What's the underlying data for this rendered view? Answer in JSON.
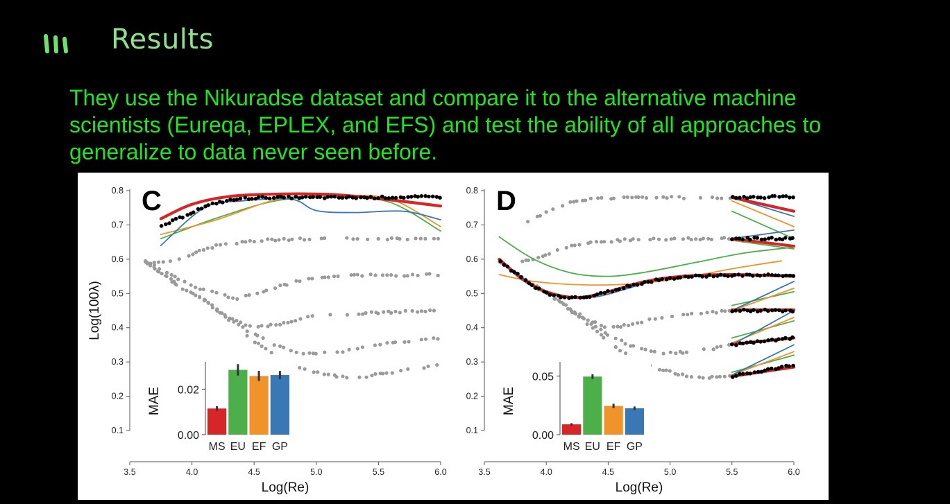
{
  "slide": {
    "title": "Results",
    "body": "They use the Nikuradse dataset and compare it to the alternative machine scientists (Eureqa, EPLEX, and EFS) and test the ability of all approaches to generalize to data never seen before.",
    "title_color": "#8ee08e",
    "text_color": "#22e222",
    "logo_icon": "three-bars-logo-icon"
  },
  "chart_data": [
    {
      "panel": "C",
      "type": "scatter",
      "xlabel": "Log(Re)",
      "ylabel": "Log(100λ)",
      "xlim": [
        3.5,
        6.0
      ],
      "ylim": [
        0.1,
        0.8
      ],
      "xticks": [
        "3.5",
        "4.0",
        "4.5",
        "5.0",
        "5.5",
        "6.0"
      ],
      "yticks": [
        "0.1",
        "0.2",
        "0.3",
        "0.4",
        "0.5",
        "0.6",
        "0.7",
        "0.8"
      ],
      "gray_curves": [
        [
          [
            3.62,
            0.595
          ],
          [
            3.8,
            0.59
          ],
          [
            4.0,
            0.615
          ],
          [
            4.2,
            0.64
          ],
          [
            4.4,
            0.65
          ],
          [
            4.7,
            0.658
          ],
          [
            5.2,
            0.66
          ],
          [
            6.0,
            0.66
          ]
        ],
        [
          [
            3.62,
            0.595
          ],
          [
            3.9,
            0.54
          ],
          [
            4.1,
            0.51
          ],
          [
            4.35,
            0.485
          ],
          [
            4.6,
            0.51
          ],
          [
            4.9,
            0.54
          ],
          [
            5.2,
            0.552
          ],
          [
            6.0,
            0.555
          ]
        ],
        [
          [
            3.62,
            0.595
          ],
          [
            3.9,
            0.525
          ],
          [
            4.1,
            0.48
          ],
          [
            4.3,
            0.43
          ],
          [
            4.5,
            0.4
          ],
          [
            4.7,
            0.41
          ],
          [
            4.9,
            0.43
          ],
          [
            5.2,
            0.44
          ],
          [
            6.0,
            0.45
          ]
        ],
        [
          [
            3.62,
            0.595
          ],
          [
            3.9,
            0.52
          ],
          [
            4.1,
            0.48
          ],
          [
            4.3,
            0.425
          ],
          [
            4.5,
            0.38
          ],
          [
            4.7,
            0.345
          ],
          [
            4.9,
            0.325
          ],
          [
            5.2,
            0.33
          ],
          [
            5.6,
            0.355
          ],
          [
            6.0,
            0.37
          ]
        ],
        [
          [
            3.62,
            0.595
          ],
          [
            3.9,
            0.52
          ],
          [
            4.1,
            0.48
          ],
          [
            4.3,
            0.42
          ],
          [
            4.5,
            0.36
          ],
          [
            4.7,
            0.31
          ],
          [
            4.9,
            0.28
          ],
          [
            5.1,
            0.262
          ],
          [
            5.3,
            0.252
          ],
          [
            5.6,
            0.27
          ],
          [
            6.0,
            0.29
          ]
        ]
      ],
      "black_series": [
        [
          3.75,
          0.695
        ],
        [
          3.9,
          0.72
        ],
        [
          4.05,
          0.745
        ],
        [
          4.2,
          0.765
        ],
        [
          4.4,
          0.777
        ],
        [
          4.6,
          0.78
        ],
        [
          4.9,
          0.78
        ],
        [
          5.2,
          0.78
        ],
        [
          5.5,
          0.78
        ],
        [
          6.0,
          0.782
        ]
      ],
      "fit_lines": [
        {
          "name": "MS",
          "color": "#d62728",
          "points": [
            [
              3.75,
              0.718
            ],
            [
              4.0,
              0.76
            ],
            [
              4.3,
              0.783
            ],
            [
              4.7,
              0.79
            ],
            [
              5.1,
              0.789
            ],
            [
              5.5,
              0.777
            ],
            [
              6.0,
              0.755
            ]
          ]
        },
        {
          "name": "EU",
          "color": "#4daf4a",
          "points": [
            [
              3.75,
              0.66
            ],
            [
              4.2,
              0.72
            ],
            [
              4.7,
              0.772
            ],
            [
              5.2,
              0.78
            ],
            [
              5.6,
              0.765
            ],
            [
              6.0,
              0.682
            ]
          ]
        },
        {
          "name": "EF",
          "color": "#f0932b",
          "points": [
            [
              3.75,
              0.672
            ],
            [
              4.2,
              0.715
            ],
            [
              4.7,
              0.775
            ],
            [
              5.2,
              0.785
            ],
            [
              5.6,
              0.775
            ],
            [
              6.0,
              0.695
            ]
          ]
        },
        {
          "name": "GP",
          "color": "#3a78b5",
          "points": [
            [
              3.75,
              0.64
            ],
            [
              4.1,
              0.75
            ],
            [
              4.4,
              0.77
            ],
            [
              4.8,
              0.775
            ],
            [
              5.0,
              0.742
            ],
            [
              5.3,
              0.736
            ],
            [
              5.7,
              0.74
            ],
            [
              6.0,
              0.715
            ]
          ]
        }
      ],
      "inset": {
        "type": "bar",
        "ylabel": "MAE",
        "categories": [
          "MS",
          "EU",
          "EF",
          "GP"
        ],
        "values": [
          0.0115,
          0.0285,
          0.0258,
          0.0262
        ],
        "errors": [
          0.001,
          0.0025,
          0.0022,
          0.0018
        ],
        "colors": [
          "#d62728",
          "#4daf4a",
          "#f0932b",
          "#3a78b5"
        ],
        "ylim": [
          0,
          0.032
        ],
        "yticks": [
          {
            "value": 0,
            "label": "0.00"
          },
          {
            "value": 0.02,
            "label": "0.02"
          }
        ]
      }
    },
    {
      "panel": "D",
      "type": "scatter",
      "xlabel": "Log(Re)",
      "ylabel": "",
      "xlim": [
        3.5,
        6.0
      ],
      "ylim": [
        0.1,
        0.8
      ],
      "xticks": [
        "3.5",
        "4.0",
        "4.5",
        "5.0",
        "5.5",
        "6.0"
      ],
      "yticks": [
        "0.1",
        "0.2",
        "0.3",
        "0.4",
        "0.5",
        "0.6",
        "0.7",
        "0.8"
      ],
      "gray_curves": [
        [
          [
            3.75,
            0.695
          ],
          [
            3.9,
            0.72
          ],
          [
            4.05,
            0.745
          ],
          [
            4.2,
            0.765
          ],
          [
            4.4,
            0.777
          ],
          [
            4.6,
            0.78
          ],
          [
            4.9,
            0.78
          ],
          [
            5.5,
            0.78
          ]
        ],
        [
          [
            3.62,
            0.595
          ],
          [
            3.8,
            0.59
          ],
          [
            4.0,
            0.615
          ],
          [
            4.2,
            0.64
          ],
          [
            4.4,
            0.65
          ],
          [
            4.7,
            0.658
          ],
          [
            5.5,
            0.66
          ]
        ],
        [
          [
            3.62,
            0.595
          ],
          [
            3.9,
            0.525
          ],
          [
            4.1,
            0.48
          ],
          [
            4.3,
            0.43
          ],
          [
            4.5,
            0.4
          ],
          [
            4.7,
            0.41
          ],
          [
            4.9,
            0.43
          ],
          [
            5.2,
            0.44
          ],
          [
            5.5,
            0.45
          ]
        ],
        [
          [
            3.62,
            0.595
          ],
          [
            3.9,
            0.52
          ],
          [
            4.1,
            0.48
          ],
          [
            4.3,
            0.425
          ],
          [
            4.5,
            0.38
          ],
          [
            4.7,
            0.345
          ],
          [
            4.9,
            0.325
          ],
          [
            5.2,
            0.33
          ],
          [
            5.5,
            0.35
          ]
        ],
        [
          [
            3.62,
            0.595
          ],
          [
            3.9,
            0.52
          ],
          [
            4.1,
            0.48
          ],
          [
            4.3,
            0.42
          ],
          [
            4.5,
            0.36
          ],
          [
            4.7,
            0.31
          ],
          [
            4.9,
            0.28
          ],
          [
            5.1,
            0.262
          ],
          [
            5.3,
            0.255
          ],
          [
            5.5,
            0.258
          ]
        ]
      ],
      "black_train": [
        [
          3.62,
          0.595
        ],
        [
          3.75,
          0.56
        ],
        [
          3.9,
          0.52
        ],
        [
          4.05,
          0.495
        ],
        [
          4.2,
          0.488
        ],
        [
          4.35,
          0.49
        ],
        [
          4.5,
          0.505
        ],
        [
          4.7,
          0.525
        ],
        [
          4.9,
          0.54
        ],
        [
          5.1,
          0.548
        ],
        [
          5.3,
          0.552
        ],
        [
          5.5,
          0.553
        ],
        [
          5.7,
          0.553
        ],
        [
          6.0,
          0.552
        ]
      ],
      "black_test": [
        [
          [
            5.5,
            0.78
          ],
          [
            6.0,
            0.782
          ]
        ],
        [
          [
            5.5,
            0.66
          ],
          [
            6.0,
            0.66
          ]
        ],
        [
          [
            5.5,
            0.45
          ],
          [
            6.0,
            0.45
          ]
        ],
        [
          [
            5.5,
            0.35
          ],
          [
            6.0,
            0.37
          ]
        ],
        [
          [
            5.5,
            0.258
          ],
          [
            6.0,
            0.29
          ]
        ]
      ],
      "fit_lines": [
        {
          "name": "MS",
          "color": "#d62728",
          "points": [
            [
              3.62,
              0.6
            ],
            [
              3.8,
              0.545
            ],
            [
              4.0,
              0.505
            ],
            [
              4.25,
              0.488
            ],
            [
              4.5,
              0.505
            ],
            [
              4.8,
              0.535
            ],
            [
              5.1,
              0.55
            ],
            [
              5.5,
              0.555
            ],
            [
              6.0,
              0.55
            ]
          ]
        },
        {
          "name": "EU",
          "color": "#4daf4a",
          "points": [
            [
              3.62,
              0.665
            ],
            [
              3.9,
              0.6
            ],
            [
              4.2,
              0.56
            ],
            [
              4.5,
              0.55
            ],
            [
              4.8,
              0.562
            ],
            [
              5.2,
              0.59
            ],
            [
              5.6,
              0.618
            ],
            [
              6.0,
              0.635
            ]
          ]
        },
        {
          "name": "EF",
          "color": "#f0932b",
          "points": [
            [
              3.62,
              0.555
            ],
            [
              3.9,
              0.535
            ],
            [
              4.3,
              0.525
            ],
            [
              4.7,
              0.528
            ],
            [
              5.1,
              0.545
            ],
            [
              5.5,
              0.572
            ],
            [
              5.9,
              0.595
            ]
          ]
        },
        {
          "name": "GP",
          "color": "#3a78b5",
          "points": [
            [
              3.62,
              0.6
            ],
            [
              3.8,
              0.54
            ],
            [
              4.0,
              0.505
            ],
            [
              4.2,
              0.49
            ],
            [
              4.4,
              0.49
            ],
            [
              4.6,
              0.508
            ],
            [
              4.8,
              0.53
            ],
            [
              5.0,
              0.545
            ],
            [
              5.5,
              0.552
            ],
            [
              6.0,
              0.555
            ]
          ]
        }
      ],
      "extrapolations": [
        {
          "base": 0.78,
          "lines": [
            {
              "name": "MS",
              "color": "#d62728",
              "y": [
                0.78,
                0.74
              ]
            },
            {
              "name": "GP",
              "color": "#3a78b5",
              "y": [
                0.78,
                0.725
              ]
            },
            {
              "name": "EF",
              "color": "#f0932b",
              "y": [
                0.77,
                0.695
              ]
            },
            {
              "name": "EU",
              "color": "#4daf4a",
              "y": [
                0.74,
                0.66
              ]
            }
          ]
        },
        {
          "base": 0.66,
          "lines": [
            {
              "name": "MS",
              "color": "#d62728",
              "y": [
                0.66,
                0.638
              ]
            },
            {
              "name": "GP",
              "color": "#3a78b5",
              "y": [
                0.66,
                0.685
              ]
            },
            {
              "name": "EF",
              "color": "#f0932b",
              "y": [
                0.655,
                0.64
              ]
            },
            {
              "name": "EU",
              "color": "#4daf4a",
              "y": [
                0.655,
                0.63
              ]
            }
          ]
        },
        {
          "base": 0.45,
          "lines": [
            {
              "name": "MS",
              "color": "#d62728",
              "y": [
                0.452,
                0.452
              ]
            },
            {
              "name": "GP",
              "color": "#3a78b5",
              "y": [
                0.45,
                0.535
              ]
            },
            {
              "name": "EF",
              "color": "#f0932b",
              "y": [
                0.45,
                0.515
              ]
            },
            {
              "name": "EU",
              "color": "#4daf4a",
              "y": [
                0.465,
                0.505
              ]
            }
          ]
        },
        {
          "base": 0.35,
          "lines": [
            {
              "name": "MS",
              "color": "#d62728",
              "y": [
                0.352,
                0.37
              ]
            },
            {
              "name": "GP",
              "color": "#3a78b5",
              "y": [
                0.35,
                0.45
              ]
            },
            {
              "name": "EF",
              "color": "#f0932b",
              "y": [
                0.355,
                0.43
              ]
            },
            {
              "name": "EU",
              "color": "#4daf4a",
              "y": [
                0.37,
                0.42
              ]
            }
          ]
        },
        {
          "base": 0.258,
          "lines": [
            {
              "name": "MS",
              "color": "#d62728",
              "y": [
                0.258,
                0.285
              ]
            },
            {
              "name": "GP",
              "color": "#3a78b5",
              "y": [
                0.262,
                0.35
              ]
            },
            {
              "name": "EF",
              "color": "#f0932b",
              "y": [
                0.262,
                0.33
              ]
            },
            {
              "name": "EU",
              "color": "#4daf4a",
              "y": [
                0.27,
                0.32
              ]
            }
          ]
        }
      ],
      "inset": {
        "type": "bar",
        "ylabel": "MAE",
        "categories": [
          "MS",
          "EU",
          "EF",
          "GP"
        ],
        "values": [
          0.0088,
          0.0495,
          0.0245,
          0.0225
        ],
        "errors": [
          0.001,
          0.002,
          0.0018,
          0.0015
        ],
        "colors": [
          "#d62728",
          "#4daf4a",
          "#f0932b",
          "#3a78b5"
        ],
        "ylim": [
          0,
          0.062
        ],
        "yticks": [
          {
            "value": 0,
            "label": "0.00"
          },
          {
            "value": 0.05,
            "label": "0.05"
          }
        ]
      }
    }
  ]
}
